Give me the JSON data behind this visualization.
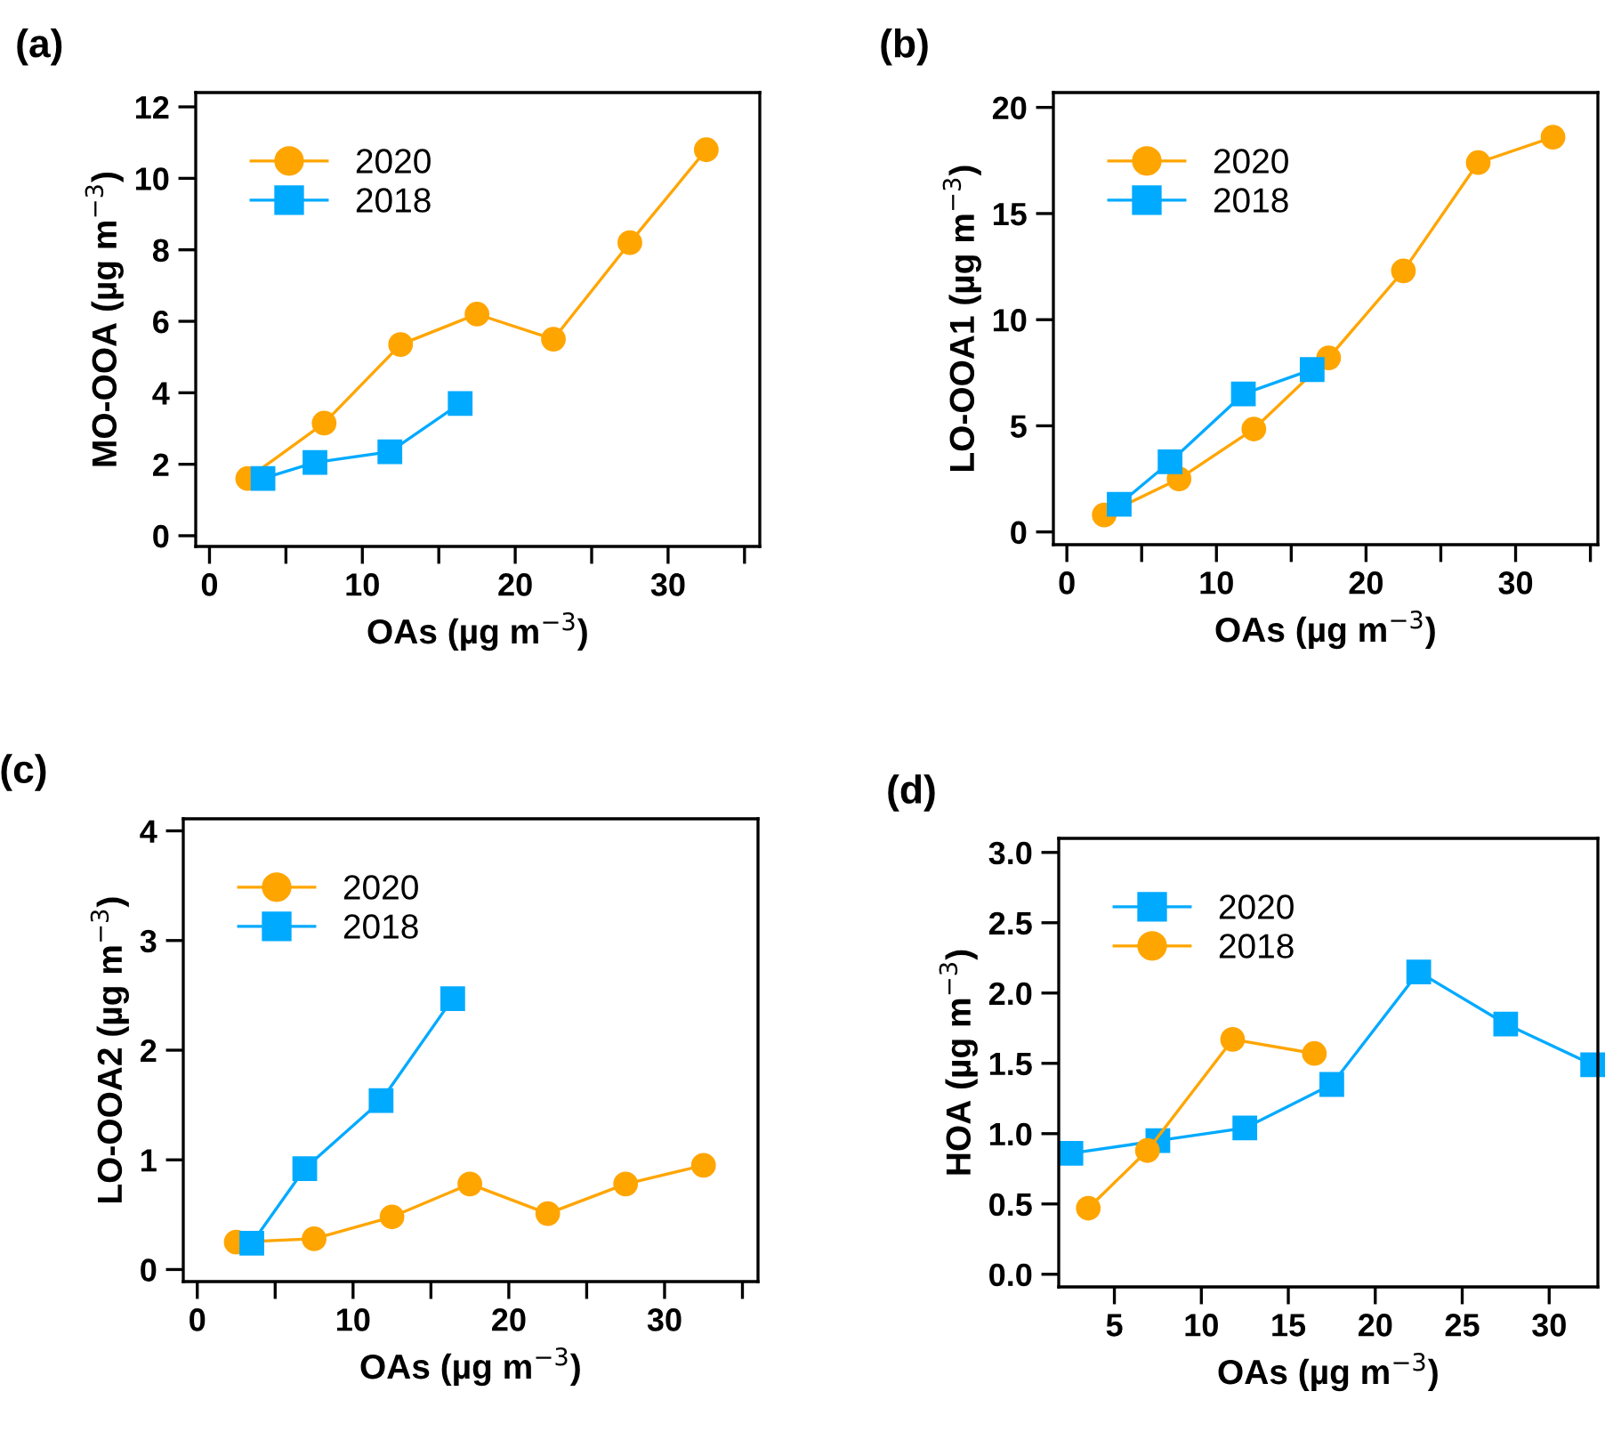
{
  "chart_data": [
    {
      "type": "line",
      "title": "(a)",
      "xlabel": "OAs (µg m$^{−3}$)",
      "ylabel": "MO-OOA (µg m$^{−3}$)",
      "xlim": [
        -0.9,
        36
      ],
      "ylim": [
        -0.3,
        12.4
      ],
      "xticks": [
        0,
        {
          "value": 5,
          "label": null
        },
        10,
        {
          "value": 15,
          "label": null
        },
        20,
        {
          "value": 25,
          "label": null
        },
        30,
        {
          "value": 35,
          "label": null
        }
      ],
      "yticks": [
        0,
        2,
        4,
        6,
        8,
        10,
        12
      ],
      "legend": "top left",
      "grid": false,
      "series": [
        {
          "name": "2020",
          "color": "#ffa500",
          "marker": "circle",
          "x": [
            2.5,
            7.5,
            12.5,
            17.5,
            22.5,
            27.5,
            32.5
          ],
          "values": [
            1.6,
            3.15,
            5.35,
            6.2,
            5.5,
            8.2,
            10.8
          ]
        },
        {
          "name": "2018",
          "color": "#00aaff",
          "marker": "square",
          "x": [
            3.5,
            6.9,
            11.8,
            16.4
          ],
          "values": [
            1.6,
            2.05,
            2.35,
            3.7
          ]
        }
      ]
    },
    {
      "type": "line",
      "title": "(b)",
      "xlabel": "OAs (µg m$^{−3}$)",
      "ylabel": "LO-OOA1 (µg m$^{−3}$)",
      "xlim": [
        -0.9,
        35.5
      ],
      "ylim": [
        -0.6,
        20.7
      ],
      "xticks": [
        0,
        {
          "value": 5,
          "label": null
        },
        10,
        {
          "value": 15,
          "label": null
        },
        20,
        {
          "value": 25,
          "label": null
        },
        30,
        {
          "value": 35,
          "label": null
        }
      ],
      "yticks": [
        0,
        5,
        10,
        15,
        20
      ],
      "legend": "top left",
      "grid": false,
      "series": [
        {
          "name": "2020",
          "color": "#ffa500",
          "marker": "circle",
          "x": [
            2.5,
            7.5,
            12.5,
            17.5,
            22.5,
            27.5,
            32.5
          ],
          "values": [
            0.8,
            2.5,
            4.85,
            8.2,
            12.3,
            17.4,
            18.6
          ]
        },
        {
          "name": "2018",
          "color": "#00aaff",
          "marker": "square",
          "x": [
            3.5,
            6.9,
            11.8,
            16.4
          ],
          "values": [
            1.3,
            3.3,
            6.5,
            7.65
          ]
        }
      ]
    },
    {
      "type": "line",
      "title": "(c)",
      "xlabel": "OAs (µg m$^{−3}$)",
      "ylabel": "LO-OOA2 (µg m$^{−3}$)",
      "xlim": [
        -0.9,
        36
      ],
      "ylim": [
        -0.11,
        4.11
      ],
      "xticks": [
        0,
        {
          "value": 5,
          "label": null
        },
        10,
        {
          "value": 15,
          "label": null
        },
        20,
        {
          "value": 25,
          "label": null
        },
        30,
        {
          "value": 35,
          "label": null
        }
      ],
      "yticks": [
        0,
        1,
        2,
        3,
        4
      ],
      "legend": "top left",
      "grid": false,
      "series": [
        {
          "name": "2020",
          "color": "#ffa500",
          "marker": "circle",
          "x": [
            2.5,
            7.5,
            12.5,
            17.5,
            22.5,
            27.5,
            32.5
          ],
          "values": [
            0.25,
            0.28,
            0.48,
            0.78,
            0.51,
            0.78,
            0.95
          ]
        },
        {
          "name": "2018",
          "color": "#00aaff",
          "marker": "square",
          "x": [
            3.5,
            6.9,
            11.8,
            16.4
          ],
          "values": [
            0.24,
            0.92,
            1.54,
            2.47
          ]
        }
      ]
    },
    {
      "type": "line",
      "title": "(d)",
      "xlabel": "OAs (µg m$^{−3}$)",
      "ylabel": "HOA (µg m$^{−3}$)",
      "xlim": [
        1.8,
        32.8
      ],
      "ylim": [
        -0.09,
        3.1
      ],
      "xticks": [
        5,
        10,
        15,
        20,
        25,
        30
      ],
      "yticks": [
        {
          "value": 0,
          "label": "0.0"
        },
        0.5,
        {
          "value": 1,
          "label": "1.0"
        },
        1.5,
        {
          "value": 2,
          "label": "2.0"
        },
        2.5,
        {
          "value": 3,
          "label": "3.0"
        }
      ],
      "legend": "top left",
      "grid": false,
      "series": [
        {
          "name": "2020",
          "color": "#00aaff",
          "marker": "square",
          "x": [
            2.5,
            7.5,
            12.5,
            17.5,
            22.5,
            27.5,
            32.5
          ],
          "values": [
            0.86,
            0.95,
            1.04,
            1.35,
            2.15,
            1.78,
            1.49
          ]
        },
        {
          "name": "2018",
          "color": "#ffa500",
          "marker": "circle",
          "x": [
            3.5,
            6.9,
            11.8,
            16.5
          ],
          "values": [
            0.47,
            0.88,
            1.67,
            1.57
          ]
        }
      ]
    }
  ]
}
